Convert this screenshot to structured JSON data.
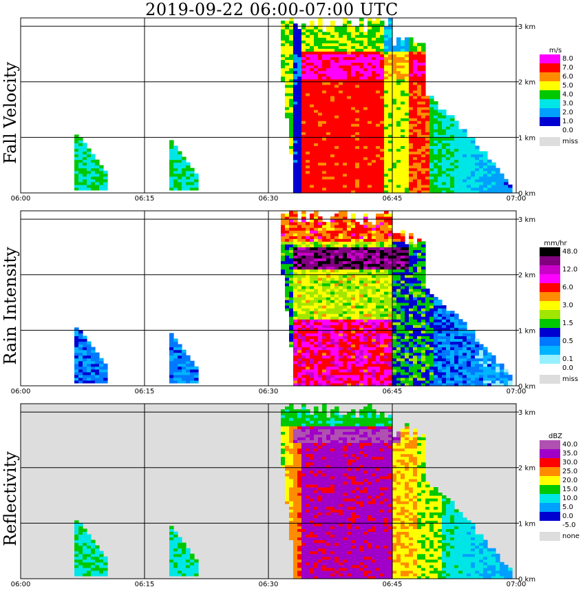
{
  "title": "2019-09-22   06:00-07:00 UTC",
  "chart_data": [
    {
      "type": "heatmap",
      "ylabel": "Fall Velocity",
      "x_ticks": [
        "06:00",
        "06:15",
        "06:30",
        "06:45",
        "07:00"
      ],
      "y_ticks": [
        "0 km",
        "1 km",
        "2 km",
        "3 km"
      ],
      "ylim_km": [
        0,
        3.15
      ],
      "legend": {
        "unit": "m/s",
        "levels": [
          {
            "label": "8.0",
            "color": "#ff00ff"
          },
          {
            "label": "7.0",
            "color": "#ff0000"
          },
          {
            "label": "6.0",
            "color": "#ff8c00"
          },
          {
            "label": "5.0",
            "color": "#ffff00"
          },
          {
            "label": "4.0",
            "color": "#00c800"
          },
          {
            "label": "3.0",
            "color": "#00e6e6"
          },
          {
            "label": "2.0",
            "color": "#00a0ff"
          },
          {
            "label": "1.0",
            "color": "#0000d0"
          },
          {
            "label": "0.0",
            "color": "#ffffff"
          }
        ],
        "missing": {
          "label": "miss",
          "color": "#dddddd"
        }
      }
    },
    {
      "type": "heatmap",
      "ylabel": "Rain Intensity",
      "x_ticks": [
        "06:00",
        "06:15",
        "06:30",
        "06:45",
        "07:00"
      ],
      "y_ticks": [
        "0 km",
        "1 km",
        "2 km",
        "3 km"
      ],
      "ylim_km": [
        0,
        3.15
      ],
      "legend": {
        "unit": "mm/hr",
        "levels": [
          {
            "label": "48.0",
            "color": "#000000"
          },
          {
            "label": "",
            "color": "#800080"
          },
          {
            "label": "12.0",
            "color": "#c800c8"
          },
          {
            "label": "",
            "color": "#ff00ff"
          },
          {
            "label": "6.0",
            "color": "#ff0000"
          },
          {
            "label": "",
            "color": "#ff8c00"
          },
          {
            "label": "3.0",
            "color": "#ffff00"
          },
          {
            "label": "",
            "color": "#a0e600"
          },
          {
            "label": "1.5",
            "color": "#00c800"
          },
          {
            "label": "",
            "color": "#0000d0"
          },
          {
            "label": "0.5",
            "color": "#0078ff"
          },
          {
            "label": "",
            "color": "#00b4ff"
          },
          {
            "label": "0.1",
            "color": "#96f0ff"
          },
          {
            "label": "0.0",
            "color": "#ffffff"
          }
        ],
        "missing": {
          "label": "miss",
          "color": "#dddddd"
        }
      }
    },
    {
      "type": "heatmap",
      "ylabel": "Reflectivity",
      "x_ticks": [
        "06:00",
        "06:15",
        "06:30",
        "06:45",
        "07:00"
      ],
      "y_ticks": [
        "0 km",
        "1 km",
        "2 km",
        "3 km"
      ],
      "ylim_km": [
        0,
        3.15
      ],
      "legend": {
        "unit": "dBZ",
        "levels": [
          {
            "label": "40.0",
            "color": "#b050b0"
          },
          {
            "label": "35.0",
            "color": "#a000c8"
          },
          {
            "label": "30.0",
            "color": "#ff0000"
          },
          {
            "label": "25.0",
            "color": "#ff8c00"
          },
          {
            "label": "20.0",
            "color": "#ffff00"
          },
          {
            "label": "15.0",
            "color": "#00c800"
          },
          {
            "label": "10.0",
            "color": "#00e6e6"
          },
          {
            "label": "5.0",
            "color": "#00a0ff"
          },
          {
            "label": "0.0",
            "color": "#0000d0"
          },
          {
            "label": "-5.0",
            "color": "#ffffff"
          }
        ],
        "missing": {
          "label": "none",
          "color": "#dddddd"
        }
      }
    }
  ]
}
